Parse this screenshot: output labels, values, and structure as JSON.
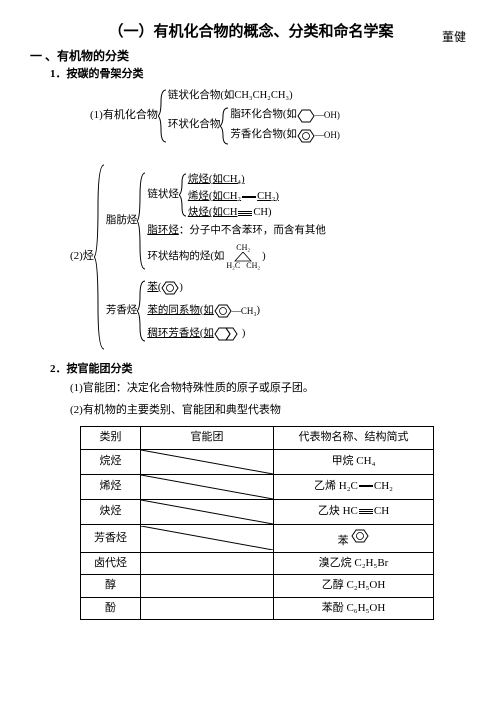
{
  "title": "（一）有机化合物的概念、分类和命名学案",
  "author": "董健",
  "sec1": "一 、有机物的分类",
  "sec1_1": "1．按碳的骨架分类",
  "b1_label": "(1)有机化合物",
  "b1_a": "链状化合物(如CH₃CH₂CH₃)",
  "b1_b": "环状化合物",
  "b1_b1": "脂环化合物(如",
  "b1_b1_tail": "—OH)",
  "b1_b2": "芳香化合物(如",
  "b1_b2_tail": "—OH)",
  "b2_label": "(2)烃",
  "b2_a": "脂肪烃",
  "b2_a1": "链状烃",
  "b2_a1_1": "烷烃(如CH₄)",
  "b2_a1_2_pre": "烯烃(如CH₂",
  "b2_a1_2_post": "CH₂)",
  "b2_a1_3_pre": "炔烃(如CH",
  "b2_a1_3_post": "CH)",
  "b2_a2_pre": "脂环烃",
  "b2_a2_mid": "：分子中不含苯环，而含有其他",
  "b2_a3_pre": "环状结构的烃(如",
  "b2_a3_top": "CH₂",
  "b2_a3_l": "H₂C",
  "b2_a3_r": "CH₂",
  "b2_a3_post": ")",
  "b2_b": "芳香烃",
  "b2_b1": "苯(",
  "b2_b1_post": ")",
  "b2_b2": "苯的同系物(如",
  "b2_b2_sub": "—CH₃",
  "b2_b2_post": ")",
  "b2_b3": "稠环芳香烃(如",
  "b2_b3_post": ")",
  "sec1_2": "2．按官能团分类",
  "fg1": "(1)官能团：决定化合物特殊性质的原子或原子团。",
  "fg2": "(2)有机物的主要类别、官能团和典型代表物",
  "table": {
    "head": [
      "类别",
      "官能团",
      "代表物名称、结构简式"
    ],
    "rows": [
      {
        "cat": "烷烃",
        "diag": true,
        "rep": "甲烷 CH₄"
      },
      {
        "cat": "烯烃",
        "diag": true,
        "rep_kind": "ethene",
        "rep_pre": "乙烯 H₂C",
        "rep_post": "CH₂"
      },
      {
        "cat": "炔烃",
        "diag": true,
        "rep_kind": "ethyne",
        "rep_pre": "乙炔 HC",
        "rep_post": "CH"
      },
      {
        "cat": "芳香烃",
        "diag": true,
        "rep_kind": "benzene",
        "rep_pre": "苯 "
      },
      {
        "cat": "卤代烃",
        "fg": "",
        "rep": "溴乙烷 C₂H₅Br"
      },
      {
        "cat": "醇",
        "fg": "",
        "rep": "乙醇 C₂H₅OH"
      },
      {
        "cat": "酚",
        "fg": "",
        "rep": "苯酚 C₆H₅OH"
      }
    ]
  }
}
